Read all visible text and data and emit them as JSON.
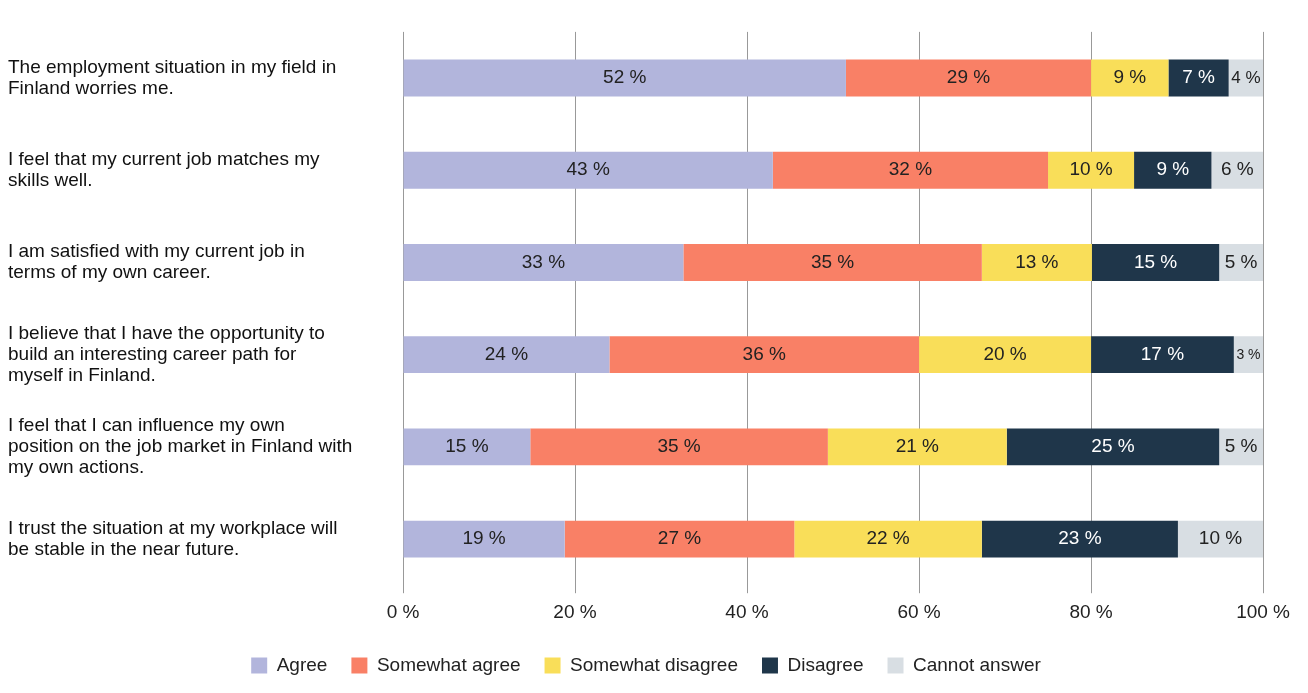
{
  "chart_data": {
    "type": "bar",
    "orientation": "horizontal",
    "stacked": true,
    "categories": [
      "The employment situation in my field in Finland worries me.",
      "I feel that my current job matches my skills well.",
      "I am satisfied with my current job in terms of my own career.",
      "I believe that I have the opportunity to build an interesting career path for myself in Finland.",
      "I feel that I can influence my own position on the job market in Finland with my own actions.",
      "I trust the situation at my workplace will be stable in the near future."
    ],
    "series": [
      {
        "name": "Agree",
        "color": "#b2b5dc",
        "values": [
          51.5,
          43,
          32.6,
          24,
          14.8,
          18.8
        ],
        "value_labels": [
          "52 %",
          "43 %",
          "33 %",
          "24 %",
          "15 %",
          "19 %"
        ]
      },
      {
        "name": "Somewhat agree",
        "color": "#f98066",
        "values": [
          28.5,
          32,
          34.7,
          36,
          34.6,
          26.7
        ],
        "value_labels": [
          "29 %",
          "32 %",
          "35 %",
          "36 %",
          "35 %",
          "27 %"
        ]
      },
      {
        "name": "Somewhat disagree",
        "color": "#f9de59",
        "values": [
          9,
          10,
          12.8,
          20,
          20.8,
          21.8
        ],
        "value_labels": [
          "9 %",
          "10 %",
          "13 %",
          "20 %",
          "21 %",
          "22 %"
        ]
      },
      {
        "name": "Disagree",
        "color": "#1f364a",
        "values": [
          7,
          9,
          14.8,
          16.6,
          24.7,
          22.8
        ],
        "value_labels": [
          "7 %",
          "9 %",
          "15 %",
          "17 %",
          "25 %",
          "23 %"
        ]
      },
      {
        "name": "Cannot answer",
        "color": "#d8dee3",
        "values": [
          4,
          6,
          5.1,
          3.4,
          5.1,
          9.9
        ],
        "value_labels": [
          "4 %",
          "6 %",
          "5 %",
          "3 %",
          "5 %",
          "10 %"
        ]
      }
    ],
    "xlim": [
      0,
      100
    ],
    "xticks": [
      {
        "value": 0,
        "label": "0 %"
      },
      {
        "value": 20,
        "label": "20 %"
      },
      {
        "value": 40,
        "label": "40 %"
      },
      {
        "value": 60,
        "label": "60 %"
      },
      {
        "value": 80,
        "label": "80 %"
      },
      {
        "value": 100,
        "label": "100 %"
      }
    ],
    "grid": "x",
    "legend": "bottom"
  }
}
